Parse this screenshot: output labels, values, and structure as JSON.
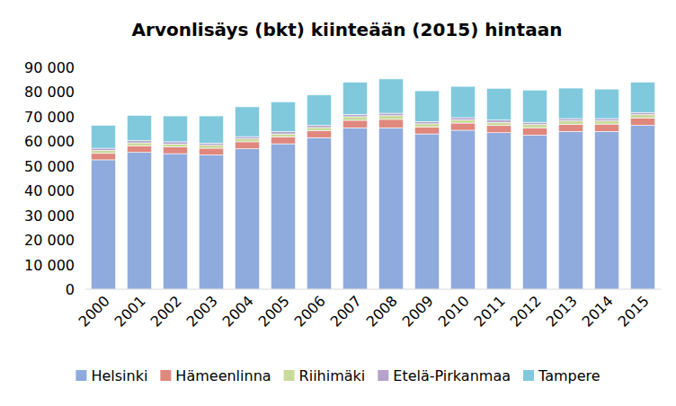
{
  "chart_data": {
    "type": "bar",
    "title": "Arvonlisäys (bkt) kiinteään (2015) hintaan",
    "stacked": true,
    "grid": false,
    "legend": "bottom",
    "categories": [
      "2000",
      "2001",
      "2002",
      "2003",
      "2004",
      "2005",
      "2006",
      "2007",
      "2008",
      "2009",
      "2010",
      "2011",
      "2012",
      "2013",
      "2014",
      "2015"
    ],
    "series": [
      {
        "name": "Helsinki",
        "color": "#8faadc",
        "values": [
          52500,
          55500,
          55000,
          54500,
          57000,
          59000,
          61500,
          65500,
          65500,
          63000,
          64500,
          63500,
          62500,
          64000,
          64000,
          66500
        ]
      },
      {
        "name": "Hämeenlinna",
        "color": "#e0877e",
        "values": [
          2600,
          2700,
          2700,
          2700,
          2800,
          2800,
          2900,
          3000,
          3400,
          2800,
          2900,
          2900,
          3000,
          2900,
          3000,
          3000
        ]
      },
      {
        "name": "Riihimäki",
        "color": "#c9da9a",
        "values": [
          1200,
          1200,
          1200,
          1200,
          1200,
          1200,
          1200,
          1500,
          1500,
          1300,
          1300,
          1300,
          1300,
          1400,
          1300,
          1300
        ]
      },
      {
        "name": "Etelä-Pirkanmaa",
        "color": "#b4a3cb",
        "values": [
          900,
          900,
          900,
          900,
          900,
          900,
          900,
          900,
          1000,
          900,
          900,
          900,
          900,
          900,
          900,
          900
        ]
      },
      {
        "name": "Tampere",
        "color": "#80c9dc",
        "values": [
          9300,
          10200,
          10500,
          11000,
          12100,
          12100,
          12300,
          13100,
          13900,
          12500,
          12700,
          12900,
          13100,
          12400,
          12000,
          12300
        ]
      }
    ],
    "ylim": [
      0,
      90000
    ],
    "yticks": [
      0,
      {
        "value": 10000,
        "label": "10 000"
      },
      {
        "value": 20000,
        "label": "20 000"
      },
      {
        "value": 30000,
        "label": "30 000"
      },
      {
        "value": 40000,
        "label": "40 000"
      },
      {
        "value": 50000,
        "label": "50 000"
      },
      {
        "value": 60000,
        "label": "60 000"
      },
      {
        "value": 70000,
        "label": "70 000"
      },
      {
        "value": 80000,
        "label": "80 000"
      },
      {
        "value": 90000,
        "label": "90 000"
      }
    ]
  }
}
